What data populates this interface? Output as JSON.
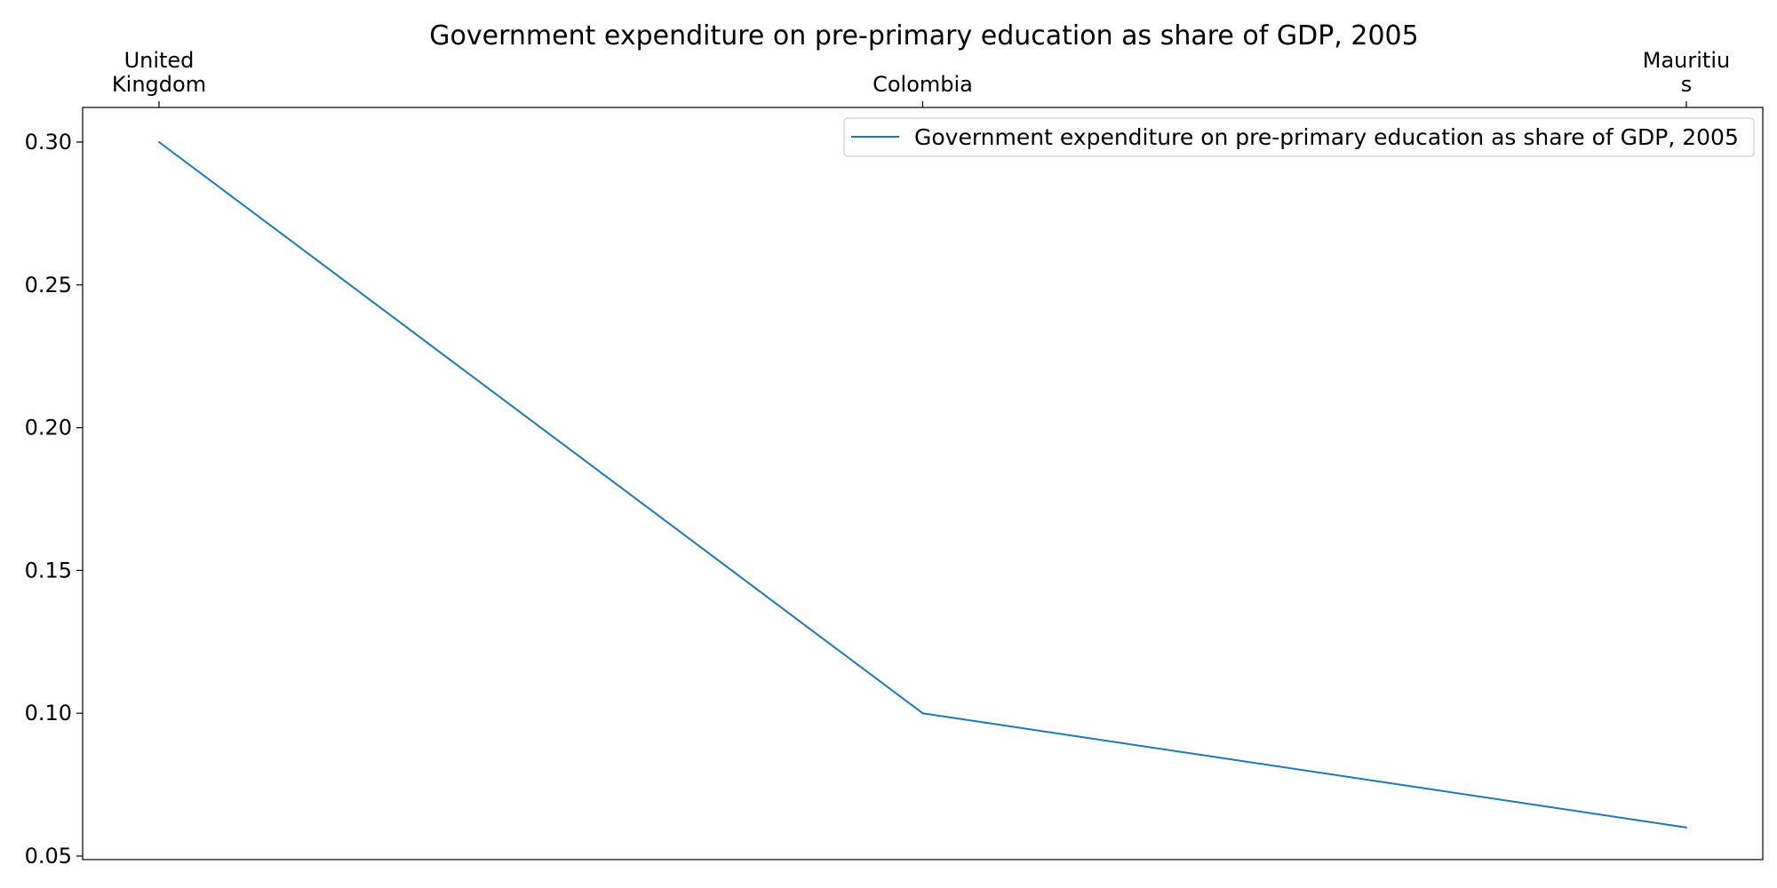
{
  "chart_data": {
    "type": "line",
    "title": "Government expenditure on pre-primary education as share of GDP, 2005",
    "categories": [
      [
        "United",
        "Kingdom"
      ],
      [
        "Colombia"
      ],
      [
        "Mauritiu",
        "s"
      ]
    ],
    "series": [
      {
        "name": "Government expenditure on pre-primary education as share of GDP, 2005",
        "values": [
          0.3,
          0.1,
          0.06
        ],
        "color": "#1f77b4"
      }
    ],
    "x_axis_position": "top",
    "xlabel": "",
    "ylabel": "",
    "ylim": [
      0.05,
      0.3
    ],
    "yticks": [
      "0.05",
      "0.10",
      "0.15",
      "0.20",
      "0.25",
      "0.30"
    ],
    "grid": false,
    "legend_position": "top-right"
  }
}
